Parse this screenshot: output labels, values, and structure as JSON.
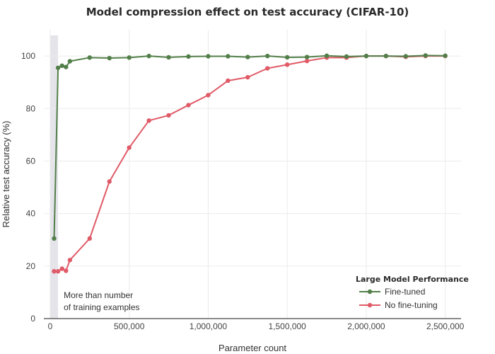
{
  "chart_data": {
    "type": "line",
    "title": "Model compression effect on test accuracy (CIFAR-10)",
    "xlabel": "Parameter count",
    "ylabel": "Relative test accuracy (%)",
    "xlim": [
      -40000,
      2600000
    ],
    "ylim": [
      0,
      110
    ],
    "xticks": [
      0,
      500000,
      1000000,
      1500000,
      2000000,
      2500000
    ],
    "xtick_labels": [
      "0",
      "500,000",
      "1,000,000",
      "1,500,000",
      "2,000,000",
      "2,500,000"
    ],
    "yticks": [
      0,
      20,
      40,
      60,
      80,
      100
    ],
    "ytick_labels": [
      "0",
      "20",
      "40",
      "60",
      "80",
      "100"
    ],
    "grid": true,
    "legend": {
      "title": "Large Model Performance",
      "placement": "bottom-right"
    },
    "shaded_region": {
      "x_range": [
        0,
        50000
      ],
      "color": "#e4e4ea"
    },
    "annotation": {
      "lines": [
        "More than number",
        "of training examples"
      ]
    },
    "series": [
      {
        "name": "Fine-tuned",
        "color": "#527f49",
        "x": [
          25000,
          50000,
          75000,
          100000,
          125000,
          250000,
          375000,
          500000,
          625000,
          750000,
          875000,
          1000000,
          1125000,
          1250000,
          1375000,
          1500000,
          1625000,
          1750000,
          1875000,
          2000000,
          2125000,
          2250000,
          2375000,
          2500000
        ],
        "y": [
          30.5,
          95.5,
          96.3,
          95.8,
          98.0,
          99.4,
          99.2,
          99.4,
          100.0,
          99.5,
          99.8,
          99.9,
          99.9,
          99.6,
          100.0,
          99.5,
          99.6,
          100.1,
          99.8,
          100.0,
          100.0,
          99.9,
          100.2,
          100.1
        ]
      },
      {
        "name": "No fine-tuning",
        "color": "#e05a67",
        "x": [
          25000,
          50000,
          75000,
          100000,
          125000,
          250000,
          375000,
          500000,
          625000,
          750000,
          875000,
          1000000,
          1125000,
          1250000,
          1375000,
          1500000,
          1625000,
          1750000,
          1875000,
          2000000,
          2125000,
          2250000,
          2375000,
          2500000
        ],
        "y": [
          18.0,
          18.0,
          19.0,
          18.2,
          22.3,
          30.5,
          52.2,
          65.1,
          75.4,
          77.4,
          81.3,
          85.1,
          90.6,
          91.9,
          95.3,
          96.7,
          98.1,
          99.4,
          99.4,
          100.0,
          100.0,
          99.7,
          100.0,
          100.0
        ]
      }
    ]
  }
}
